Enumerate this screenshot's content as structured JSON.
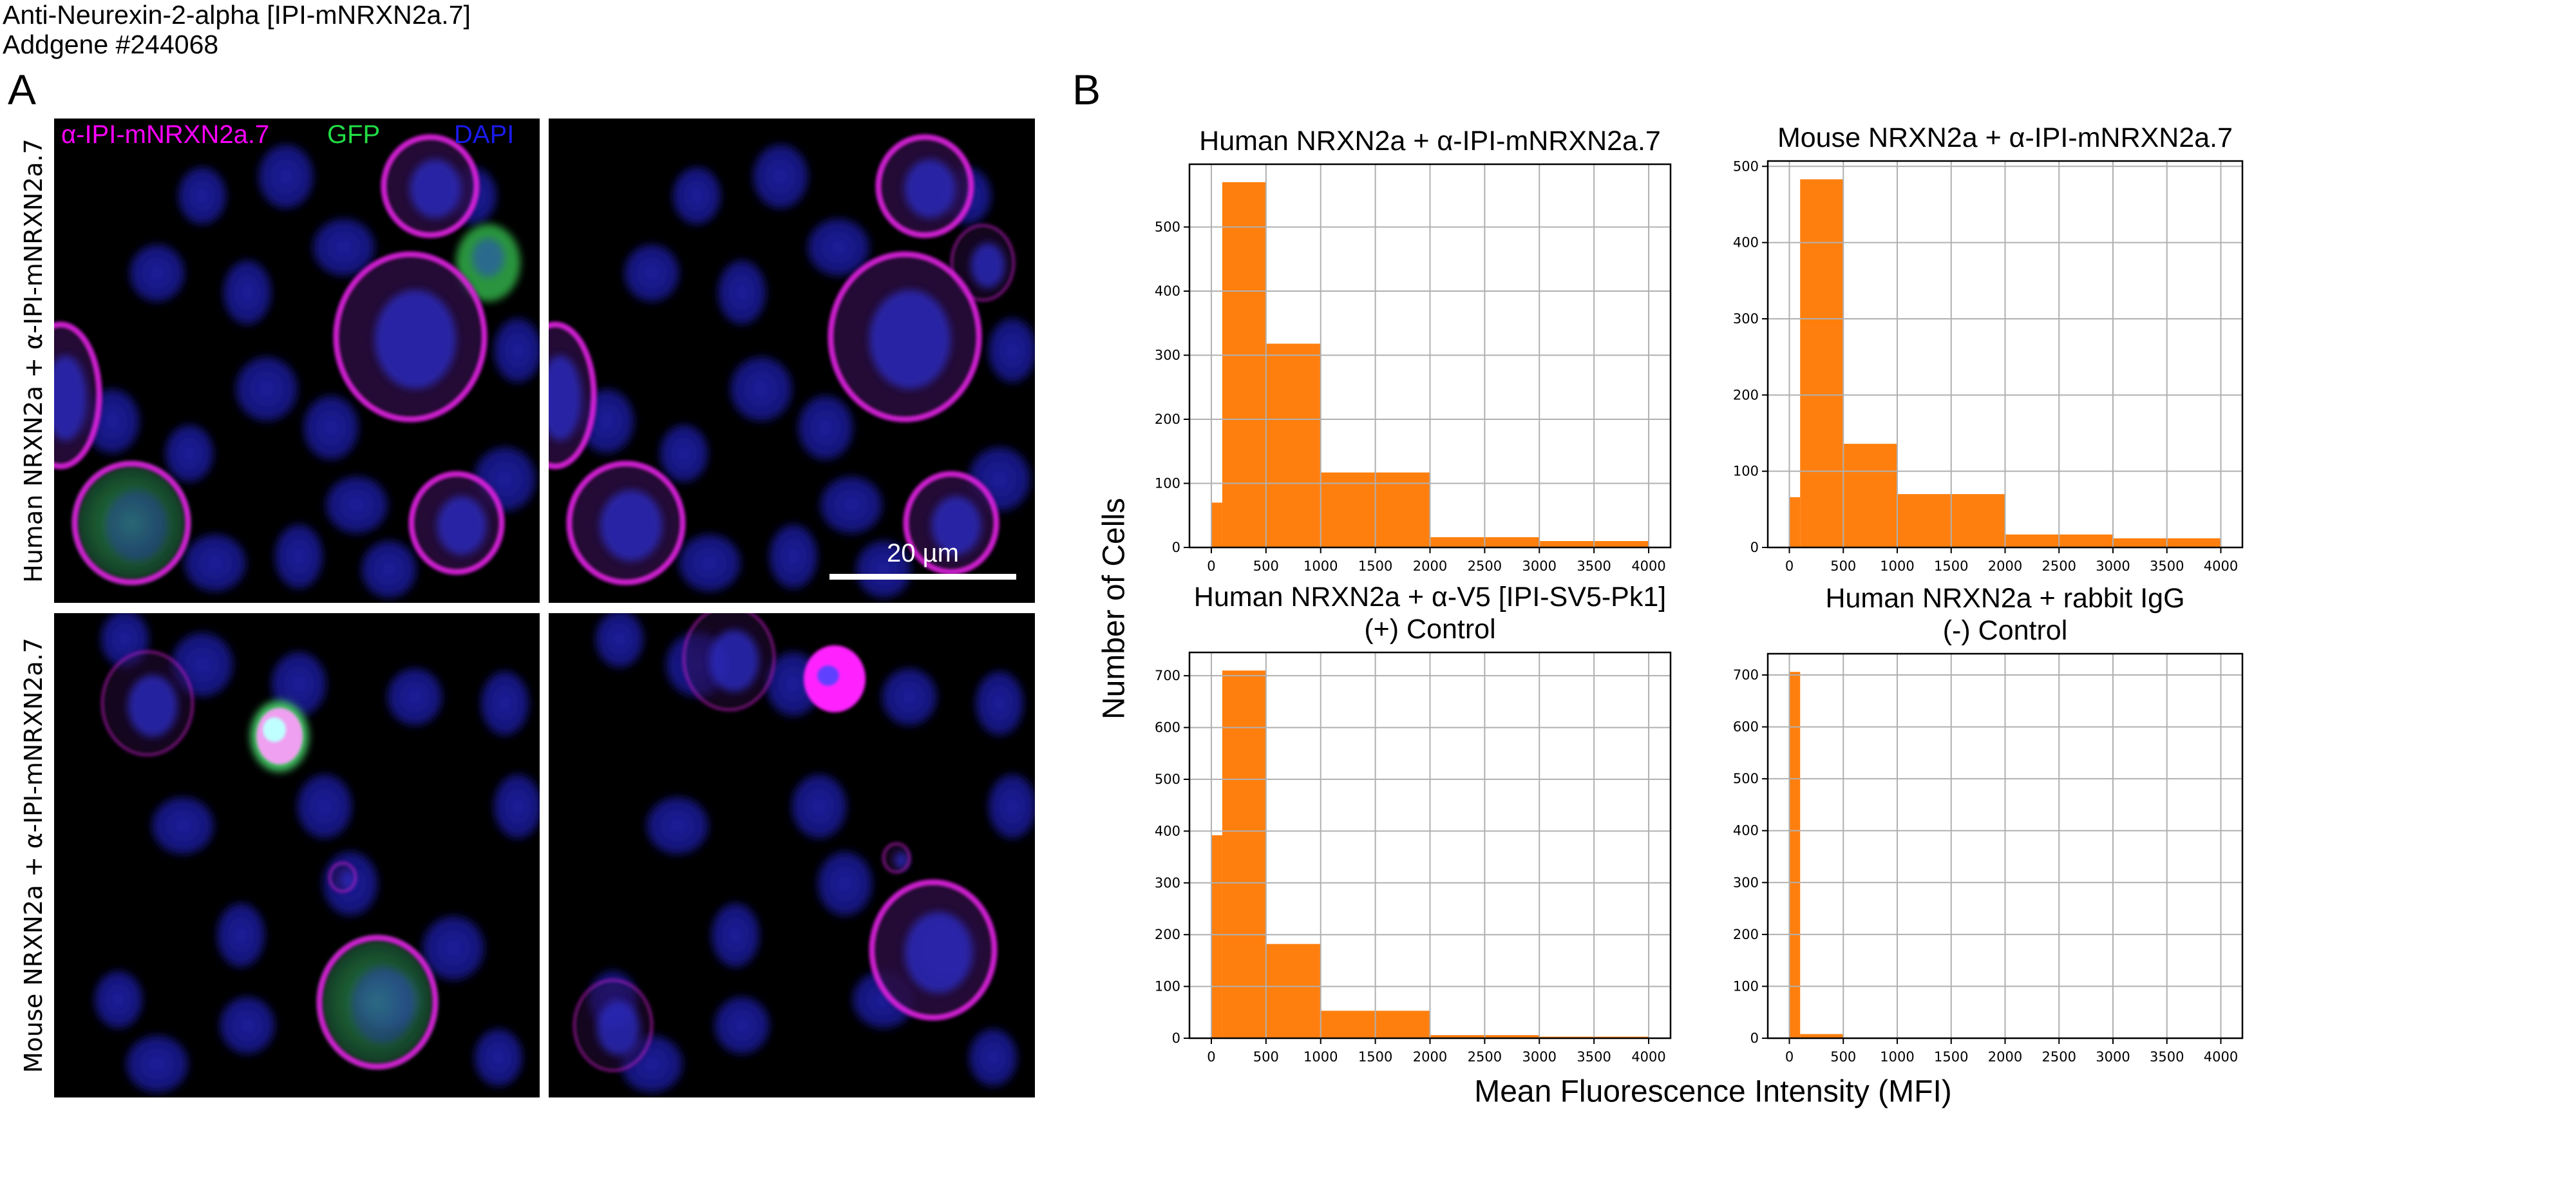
{
  "header": {
    "title": "Anti-Neurexin-2-alpha [IPI-mNRXN2a.7]",
    "subtitle": "Addgene #244068"
  },
  "panel_a": {
    "label": "A",
    "row_labels": [
      "Human NRXN2a + α-IPI-mNRXN2a.7",
      "Mouse NRXN2a + α-IPI-mNRXN2a.7"
    ],
    "channels": [
      {
        "name": "α-IPI-mNRXN2a.7",
        "color": "#ff00ff"
      },
      {
        "name": "GFP",
        "color": "#22dd44"
      },
      {
        "name": "DAPI",
        "color": "#1a1aee"
      }
    ],
    "scale_bar": "20 µm"
  },
  "panel_b": {
    "label": "B",
    "xlabel": "Mean Fluorescence Intensity (MFI)",
    "ylabel": "Number of Cells"
  },
  "colors": {
    "bar": "#ff7f0e",
    "grid": "#b0b0b0",
    "axis": "#000000"
  },
  "chart_data": [
    {
      "type": "bar",
      "title_lines": [
        "Human NRXN2a + α-IPI-mNRXN2a.7"
      ],
      "bin_edges": [
        0,
        100,
        500,
        1000,
        2000,
        3000,
        4000
      ],
      "values": [
        70,
        570,
        318,
        117,
        16,
        10
      ],
      "xlabel": "Mean Fluorescence Intensity (MFI)",
      "ylabel": "Number of Cells",
      "xlim": [
        -200,
        4200
      ],
      "ylim": [
        0,
        598
      ],
      "xticks": [
        0,
        500,
        1000,
        1500,
        2000,
        2500,
        3000,
        3500,
        4000
      ],
      "yticks": [
        0,
        100,
        200,
        300,
        400,
        500
      ],
      "grid": true
    },
    {
      "type": "bar",
      "title_lines": [
        "Mouse NRXN2a + α-IPI-mNRXN2a.7"
      ],
      "bin_edges": [
        0,
        100,
        500,
        1000,
        2000,
        3000,
        4000
      ],
      "values": [
        66,
        483,
        136,
        70,
        17,
        12
      ],
      "xlabel": "Mean Fluorescence Intensity (MFI)",
      "ylabel": "Number of Cells",
      "xlim": [
        -200,
        4200
      ],
      "ylim": [
        0,
        507
      ],
      "xticks": [
        0,
        500,
        1000,
        1500,
        2000,
        2500,
        3000,
        3500,
        4000
      ],
      "yticks": [
        0,
        100,
        200,
        300,
        400,
        500
      ],
      "grid": true
    },
    {
      "type": "bar",
      "title_lines": [
        "Human NRXN2a + α-V5 [IPI-SV5-Pk1]",
        "(+) Control"
      ],
      "bin_edges": [
        0,
        100,
        500,
        1000,
        2000,
        3000,
        4000
      ],
      "values": [
        392,
        710,
        182,
        53,
        6,
        3
      ],
      "xlabel": "Mean Fluorescence Intensity (MFI)",
      "ylabel": "Number of Cells",
      "xlim": [
        -200,
        4200
      ],
      "ylim": [
        0,
        745
      ],
      "xticks": [
        0,
        500,
        1000,
        1500,
        2000,
        2500,
        3000,
        3500,
        4000
      ],
      "yticks": [
        0,
        100,
        200,
        300,
        400,
        500,
        600,
        700
      ],
      "grid": true
    },
    {
      "type": "bar",
      "title_lines": [
        "Human NRXN2a + rabbit IgG",
        "(-) Control"
      ],
      "bin_edges": [
        0,
        100,
        500,
        1000,
        2000,
        3000,
        4000
      ],
      "values": [
        706,
        8,
        0,
        0,
        0,
        0
      ],
      "xlabel": "Mean Fluorescence Intensity (MFI)",
      "ylabel": "Number of Cells",
      "xlim": [
        -200,
        4200
      ],
      "ylim": [
        0,
        741
      ],
      "xticks": [
        0,
        500,
        1000,
        1500,
        2000,
        2500,
        3000,
        3500,
        4000
      ],
      "yticks": [
        0,
        100,
        200,
        300,
        400,
        500,
        600,
        700
      ],
      "grid": true
    }
  ]
}
